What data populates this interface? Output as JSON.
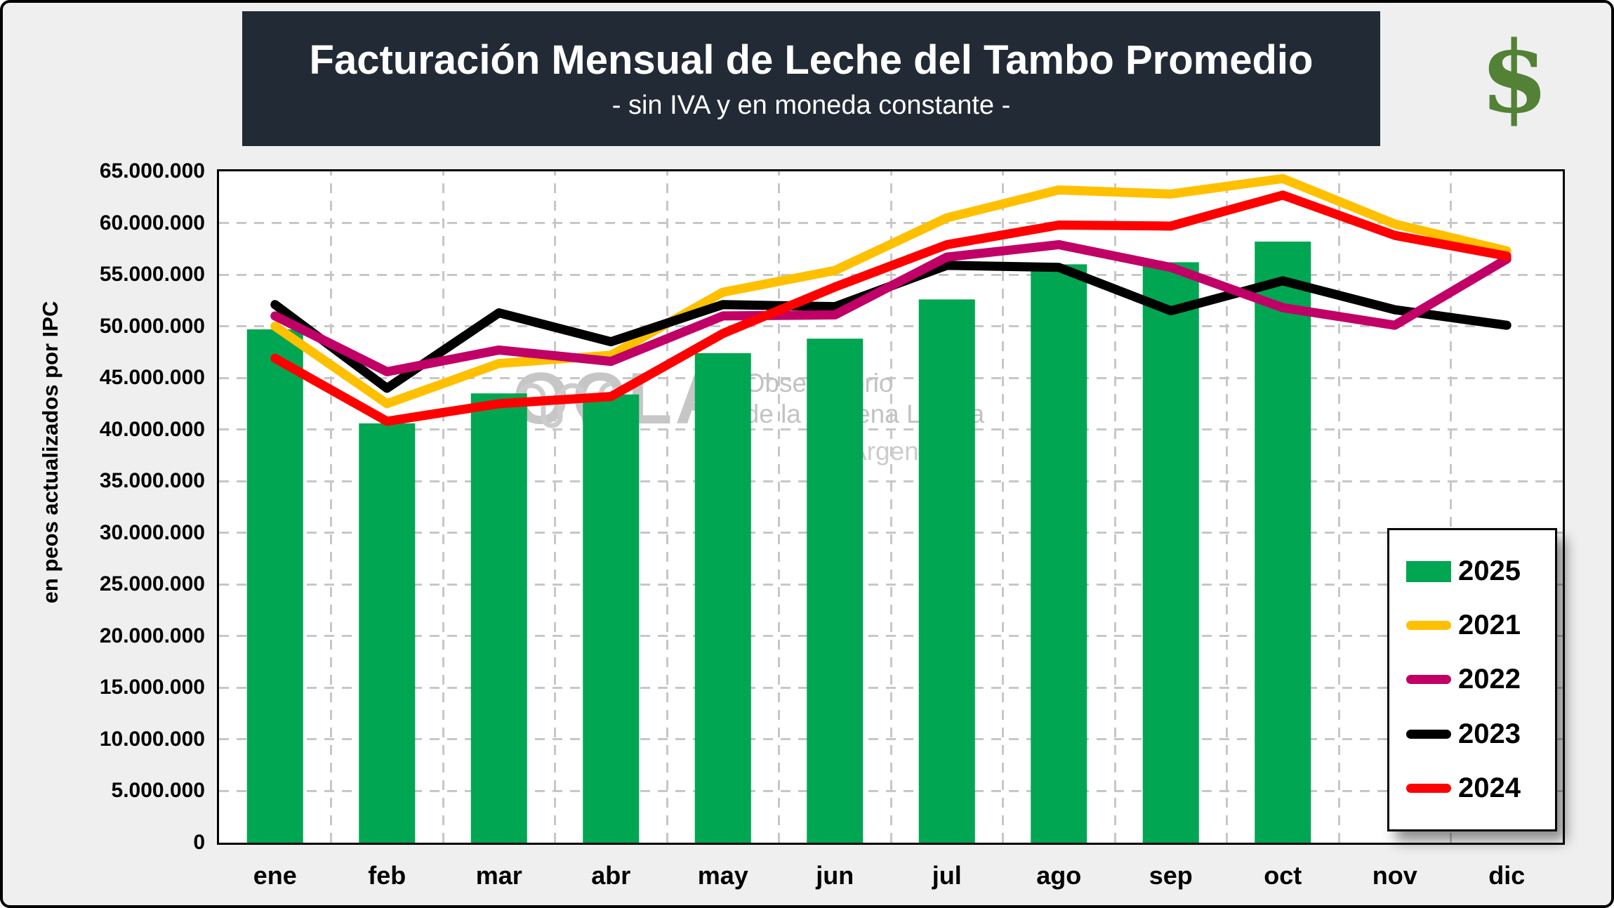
{
  "title": {
    "text": "Facturación Mensual de Leche del Tambo Promedio",
    "subtitle": "- sin IVA y en moneda constante -"
  },
  "dollar_icon_glyph": "$",
  "watermark": {
    "brand": "OCLA",
    "line1": "Observatorio",
    "line2": "de la Cadena Láctea",
    "line3": "Argentina"
  },
  "y_axis": {
    "title": "en peos actualizados por IPC",
    "tick_labels": [
      "65.000.000",
      "60.000.000",
      "55.000.000",
      "50.000.000",
      "45.000.000",
      "40.000.000",
      "35.000.000",
      "30.000.000",
      "25.000.000",
      "20.000.000",
      "15.000.000",
      "10.000.000",
      "5.000.000",
      "0"
    ]
  },
  "chart_data": {
    "type": "bar+line",
    "title": "Facturación Mensual de Leche del Tambo Promedio - sin IVA y en moneda constante -",
    "xlabel": "",
    "ylabel": "en peos actualizados por IPC",
    "categories": [
      "ene",
      "feb",
      "mar",
      "abr",
      "may",
      "jun",
      "jul",
      "ago",
      "sep",
      "oct",
      "nov",
      "dic"
    ],
    "ylim": [
      0,
      65000000
    ],
    "y_tick_step": 5000000,
    "grid": "dashed",
    "values_unit": "pesos (millones)",
    "values_scale": 1000000,
    "legend_position": "bottom-right",
    "legend_order": [
      "2025",
      "2021",
      "2022",
      "2023",
      "2024"
    ],
    "draw_order": [
      "2025",
      "2021",
      "2023",
      "2022",
      "2024"
    ],
    "series": [
      {
        "name": "2025",
        "type": "bar",
        "color": "#00a651",
        "values": [
          49.7,
          40.6,
          43.5,
          43.4,
          47.4,
          48.8,
          52.6,
          56.0,
          56.2,
          58.2,
          null,
          null
        ]
      },
      {
        "name": "2021",
        "type": "line",
        "color": "#ffc000",
        "values": [
          50.0,
          42.5,
          46.4,
          47.2,
          53.3,
          55.4,
          60.5,
          63.2,
          62.8,
          64.3,
          59.9,
          57.3
        ]
      },
      {
        "name": "2022",
        "type": "line",
        "color": "#c00066",
        "values": [
          51.0,
          45.6,
          47.7,
          46.6,
          51.0,
          51.1,
          56.7,
          57.9,
          55.7,
          51.8,
          50.1,
          56.5
        ]
      },
      {
        "name": "2023",
        "type": "line",
        "color": "#000000",
        "values": [
          52.1,
          44.0,
          51.3,
          48.5,
          52.1,
          51.9,
          55.9,
          55.7,
          51.5,
          54.4,
          51.6,
          50.1
        ]
      },
      {
        "name": "2024",
        "type": "line",
        "color": "#ff0000",
        "values": [
          46.9,
          40.8,
          42.5,
          43.2,
          49.3,
          53.8,
          57.9,
          59.8,
          59.7,
          62.7,
          58.8,
          56.8
        ]
      }
    ]
  }
}
